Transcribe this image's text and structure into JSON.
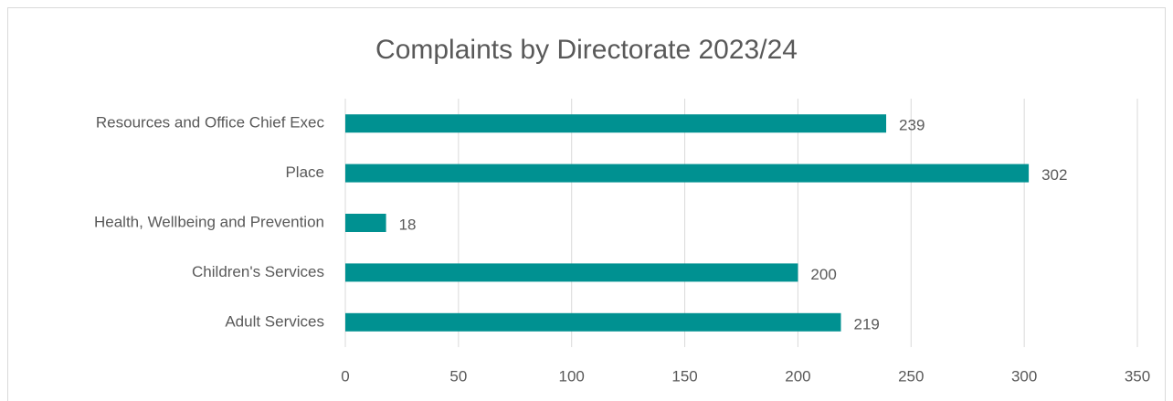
{
  "chart_data": {
    "type": "bar",
    "orientation": "horizontal",
    "title": "Complaints by Directorate 2023/24",
    "categories": [
      "Resources and Office Chief Exec",
      "Place",
      "Health, Wellbeing and Prevention",
      "Children's Services",
      "Adult Services"
    ],
    "values": [
      239,
      302,
      18,
      200,
      219
    ],
    "color": "#009191",
    "xlim": [
      0,
      350
    ],
    "xticks": [
      0,
      50,
      100,
      150,
      200,
      250,
      300,
      350
    ],
    "grid": true
  }
}
